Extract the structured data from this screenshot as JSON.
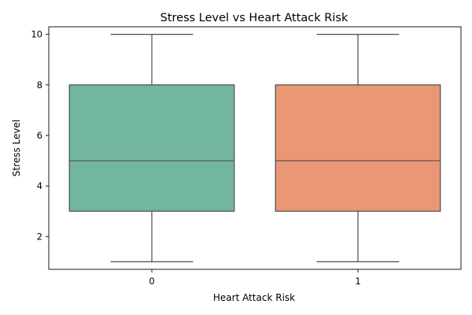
{
  "chart_data": {
    "type": "box",
    "title": "Stress Level vs Heart Attack Risk",
    "xlabel": "Heart Attack Risk",
    "ylabel": "Stress Level",
    "categories": [
      "0",
      "1"
    ],
    "boxes": [
      {
        "category": "0",
        "min": 1,
        "q1": 3,
        "median": 5,
        "q3": 8,
        "max": 10,
        "color": "#73b6a0"
      },
      {
        "category": "1",
        "min": 1,
        "q1": 3,
        "median": 5,
        "q3": 8,
        "max": 10,
        "color": "#ea9775"
      }
    ],
    "ylim": [
      0.7,
      10.3
    ],
    "yticks": [
      2,
      4,
      6,
      8,
      10
    ],
    "grid": false,
    "legend": "none"
  }
}
